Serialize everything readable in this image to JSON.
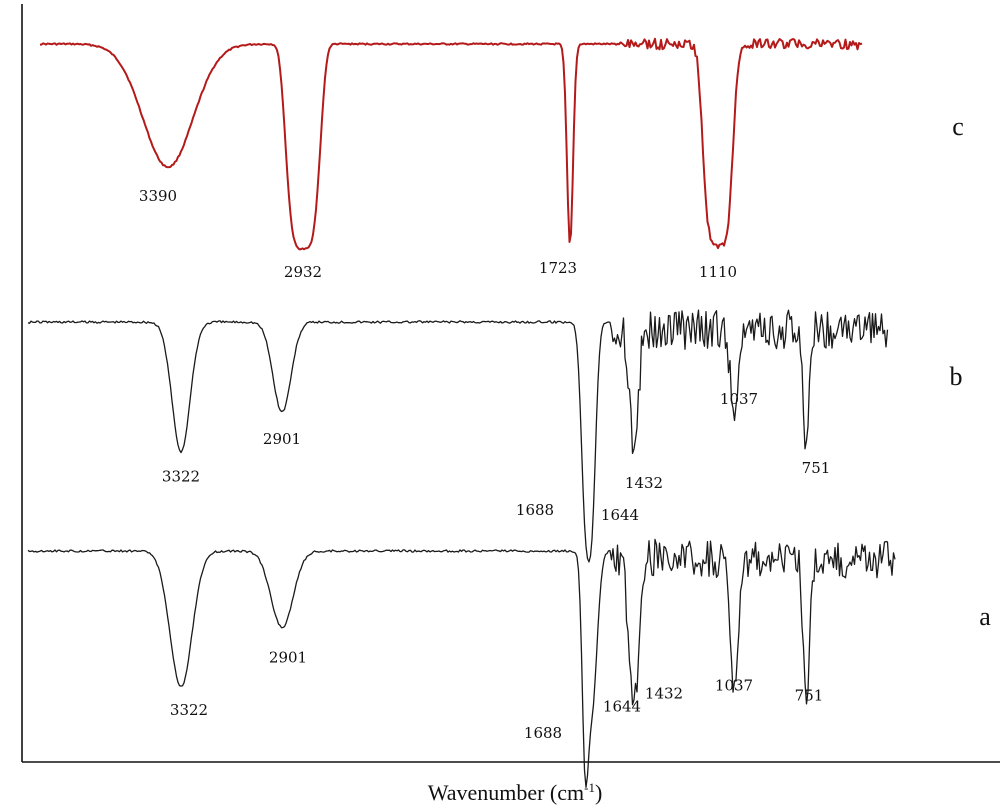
{
  "chart_data": {
    "type": "line",
    "title": "",
    "xlabel": "Wavenumber (cm⁻¹)",
    "xlabel_main": "Wavenumber (cm",
    "xlabel_sup": "-1",
    "xlabel_close": ")",
    "x_direction": "decreasing",
    "grid": false,
    "series": [
      {
        "name": "c",
        "color": "#b41a1a",
        "peaks": [
          {
            "wavenumber": 3390,
            "label": "3390"
          },
          {
            "wavenumber": 2932,
            "label": "2932"
          },
          {
            "wavenumber": 1723,
            "label": "1723"
          },
          {
            "wavenumber": 1110,
            "label": "1110"
          }
        ]
      },
      {
        "name": "b",
        "color": "#1a1a1a",
        "peaks": [
          {
            "wavenumber": 3322,
            "label": "3322"
          },
          {
            "wavenumber": 2901,
            "label": "2901"
          },
          {
            "wavenumber": 1688,
            "label": "1688"
          },
          {
            "wavenumber": 1644,
            "label": "1644"
          },
          {
            "wavenumber": 1432,
            "label": "1432"
          },
          {
            "wavenumber": 1037,
            "label": "1037"
          },
          {
            "wavenumber": 751,
            "label": "751"
          }
        ]
      },
      {
        "name": "a",
        "color": "#1a1a1a",
        "peaks": [
          {
            "wavenumber": 3322,
            "label": "3322"
          },
          {
            "wavenumber": 2901,
            "label": "2901"
          },
          {
            "wavenumber": 1688,
            "label": "1688"
          },
          {
            "wavenumber": 1644,
            "label": "1644"
          },
          {
            "wavenumber": 1432,
            "label": "1432"
          },
          {
            "wavenumber": 1037,
            "label": "1037"
          },
          {
            "wavenumber": 751,
            "label": "751"
          }
        ]
      }
    ]
  }
}
